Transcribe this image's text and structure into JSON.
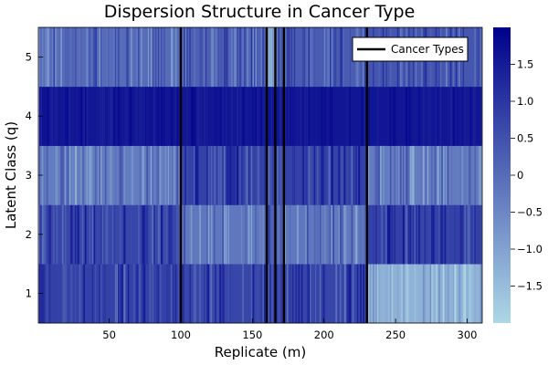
{
  "chart_data": {
    "type": "heatmap",
    "title": "Dispersion Structure in Cancer Type",
    "xlabel": "Replicate (m)",
    "ylabel": "Latent Class (q)",
    "x_range": [
      1,
      310
    ],
    "x_ticks": [
      50,
      100,
      150,
      200,
      250,
      300
    ],
    "y_categories": [
      1,
      2,
      3,
      4,
      5
    ],
    "colorbar": {
      "range": [
        -2.0,
        2.0
      ],
      "ticks": [
        -1.5,
        -1.0,
        -0.5,
        0,
        0.5,
        1.0,
        1.5
      ],
      "tick_labels": [
        "−1.5",
        "−1.0",
        "−0.5",
        "0",
        "0.5",
        "1.0",
        "1.5"
      ],
      "low_color": "#add8e6",
      "high_color": "#00008b"
    },
    "cancer_type_boundaries": [
      100,
      160,
      166,
      172,
      230
    ],
    "segment_ranges": [
      [
        1,
        100
      ],
      [
        100,
        160
      ],
      [
        160,
        166
      ],
      [
        166,
        172
      ],
      [
        172,
        230
      ],
      [
        230,
        310
      ]
    ],
    "approx_segment_means": {
      "class_5": [
        0.0,
        0.2,
        -1.2,
        0.1,
        0.3,
        0.4
      ],
      "class_4": [
        1.6,
        1.6,
        1.6,
        1.6,
        1.6,
        1.6
      ],
      "class_3": [
        -0.3,
        0.8,
        0.5,
        0.6,
        0.8,
        -0.3
      ],
      "class_2": [
        0.7,
        -0.2,
        0.3,
        0.4,
        -0.2,
        0.8
      ],
      "class_1": [
        0.8,
        0.7,
        0.9,
        0.8,
        0.7,
        -1.3
      ]
    },
    "legend": {
      "label": "Cancer Types",
      "position": "top-right"
    },
    "grid": false
  }
}
